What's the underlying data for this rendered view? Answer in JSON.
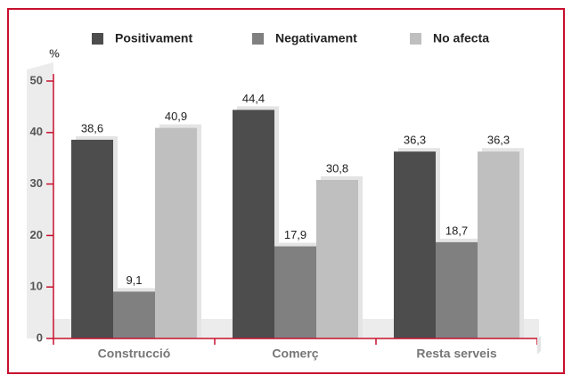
{
  "chart_data": {
    "type": "bar",
    "y_label": "%",
    "categories": [
      "Construcció",
      "Comerç",
      "Resta serveis"
    ],
    "series": [
      {
        "name": "Positivament",
        "color": "#4d4d4d",
        "values": [
          38.6,
          44.4,
          36.3
        ],
        "value_labels": [
          "38,6",
          "44,4",
          "36,3"
        ]
      },
      {
        "name": "Negativament",
        "color": "#808080",
        "values": [
          9.1,
          17.9,
          18.7
        ],
        "value_labels": [
          "9,1",
          "17,9",
          "18,7"
        ]
      },
      {
        "name": "No afecta",
        "color": "#bfbfbf",
        "values": [
          40.9,
          30.8,
          36.3
        ],
        "value_labels": [
          "40,9",
          "30,8",
          "36,3"
        ]
      }
    ],
    "ylim": [
      0,
      50
    ],
    "yticks": [
      0,
      10,
      20,
      30,
      40,
      50
    ],
    "axis_color": "#c8102e",
    "legend": "top"
  }
}
